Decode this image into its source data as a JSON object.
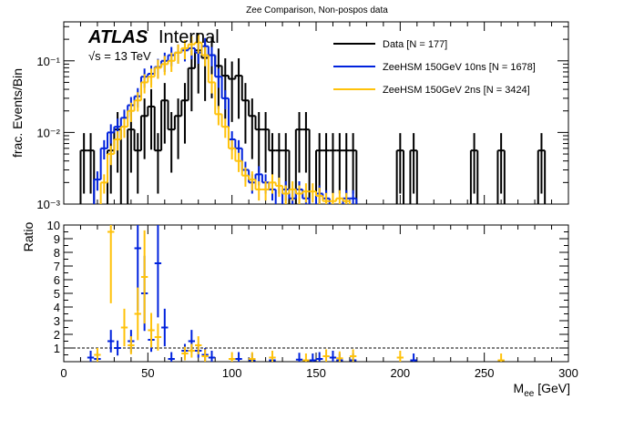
{
  "title": "Zee Comparison, Non-pospos data",
  "atlas": {
    "logo": "ATLAS",
    "status": "Internal",
    "energy": "√s = 13 TeV"
  },
  "colors": {
    "data": "#000000",
    "s10": "#0022dd",
    "s2": "#ffc20a"
  },
  "chart_data": [
    {
      "type": "histogram",
      "panel": "main",
      "xlabel": "M_ee [GeV]",
      "ylabel": "frac. Events/Bin",
      "xlim": [
        0,
        300
      ],
      "ylim": [
        0.001,
        0.35
      ],
      "yscale": "log",
      "bin_width": 4,
      "ytick_labels": [
        "10⁻³",
        "10⁻²",
        "10⁻¹"
      ],
      "legend": {
        "position": "top-right",
        "entries": [
          "Data [N = 177]",
          "ZeeHSM 150GeV 10ns [N = 1678]",
          "ZeeHSM 150GeV 2ns [N = 3424]"
        ]
      },
      "series": [
        {
          "name": "Data [N = 177]",
          "color_key": "data",
          "points": [
            [
              10,
              0.0056
            ],
            [
              14,
              0.0056
            ],
            [
              26,
              0.0056
            ],
            [
              30,
              0.011
            ],
            [
              38,
              0.011
            ],
            [
              42,
              0.0056
            ],
            [
              46,
              0.017
            ],
            [
              50,
              0.023
            ],
            [
              54,
              0.0056
            ],
            [
              58,
              0.028
            ],
            [
              62,
              0.011
            ],
            [
              66,
              0.017
            ],
            [
              70,
              0.028
            ],
            [
              74,
              0.079
            ],
            [
              78,
              0.14
            ],
            [
              82,
              0.11
            ],
            [
              86,
              0.12
            ],
            [
              90,
              0.085
            ],
            [
              94,
              0.062
            ],
            [
              98,
              0.056
            ],
            [
              102,
              0.062
            ],
            [
              106,
              0.028
            ],
            [
              110,
              0.017
            ],
            [
              114,
              0.011
            ],
            [
              118,
              0.011
            ],
            [
              122,
              0.0056
            ],
            [
              126,
              0.0056
            ],
            [
              130,
              0.0056
            ],
            [
              138,
              0.011
            ],
            [
              142,
              0.011
            ],
            [
              150,
              0.0056
            ],
            [
              154,
              0.0056
            ],
            [
              158,
              0.0056
            ],
            [
              162,
              0.0056
            ],
            [
              166,
              0.0056
            ],
            [
              170,
              0.0056
            ],
            [
              198,
              0.0056
            ],
            [
              206,
              0.0056
            ],
            [
              242,
              0.0056
            ],
            [
              258,
              0.0056
            ],
            [
              282,
              0.0056
            ]
          ]
        },
        {
          "name": "ZeeHSM 150GeV 10ns [N = 1678]",
          "color_key": "s10",
          "points": [
            [
              18,
              0.0022
            ],
            [
              22,
              0.006
            ],
            [
              26,
              0.01
            ],
            [
              30,
              0.012
            ],
            [
              34,
              0.016
            ],
            [
              38,
              0.024
            ],
            [
              42,
              0.032
            ],
            [
              46,
              0.06
            ],
            [
              50,
              0.066
            ],
            [
              54,
              0.082
            ],
            [
              58,
              0.1
            ],
            [
              62,
              0.12
            ],
            [
              66,
              0.13
            ],
            [
              70,
              0.14
            ],
            [
              74,
              0.15
            ],
            [
              78,
              0.13
            ],
            [
              82,
              0.16
            ],
            [
              86,
              0.12
            ],
            [
              90,
              0.06
            ],
            [
              94,
              0.03
            ],
            [
              98,
              0.008
            ],
            [
              102,
              0.006
            ],
            [
              106,
              0.003
            ],
            [
              110,
              0.002
            ],
            [
              114,
              0.0026
            ],
            [
              118,
              0.002
            ],
            [
              122,
              0.0016
            ],
            [
              130,
              0.0016
            ],
            [
              134,
              0.0012
            ],
            [
              138,
              0.0016
            ],
            [
              142,
              0.0012
            ],
            [
              150,
              0.0014
            ],
            [
              154,
              0.0012
            ],
            [
              166,
              0.0012
            ],
            [
              170,
              0.0012
            ]
          ]
        },
        {
          "name": "ZeeHSM 150GeV 2ns [N = 3424]",
          "color_key": "s2",
          "points": [
            [
              22,
              0.002
            ],
            [
              26,
              0.005
            ],
            [
              30,
              0.008
            ],
            [
              34,
              0.012
            ],
            [
              38,
              0.02
            ],
            [
              42,
              0.028
            ],
            [
              46,
              0.05
            ],
            [
              50,
              0.06
            ],
            [
              54,
              0.08
            ],
            [
              58,
              0.09
            ],
            [
              62,
              0.1
            ],
            [
              66,
              0.13
            ],
            [
              70,
              0.15
            ],
            [
              74,
              0.17
            ],
            [
              78,
              0.18
            ],
            [
              82,
              0.12
            ],
            [
              86,
              0.05
            ],
            [
              90,
              0.018
            ],
            [
              94,
              0.012
            ],
            [
              98,
              0.006
            ],
            [
              102,
              0.004
            ],
            [
              106,
              0.0025
            ],
            [
              110,
              0.0022
            ],
            [
              114,
              0.0016
            ],
            [
              118,
              0.0016
            ],
            [
              122,
              0.002
            ],
            [
              126,
              0.0018
            ],
            [
              130,
              0.0014
            ],
            [
              134,
              0.0016
            ],
            [
              138,
              0.0014
            ],
            [
              142,
              0.0015
            ],
            [
              146,
              0.0015
            ],
            [
              150,
              0.0013
            ],
            [
              154,
              0.0011
            ],
            [
              158,
              0.0011
            ],
            [
              162,
              0.0012
            ],
            [
              166,
              0.0011
            ]
          ]
        }
      ]
    },
    {
      "type": "scatter",
      "panel": "ratio",
      "xlabel": "M_ee [GeV]",
      "ylabel": "Ratio",
      "xlim": [
        0,
        300
      ],
      "ylim": [
        0,
        10
      ],
      "reference_line": 1,
      "xticks": [
        0,
        50,
        100,
        150,
        200,
        250,
        300
      ],
      "yticks": [
        1,
        2,
        3,
        4,
        5,
        6,
        7,
        8,
        9,
        10
      ],
      "series": [
        {
          "name": "ZeeHSM 150GeV 10ns",
          "color_key": "s10",
          "points": [
            [
              14,
              0.3
            ],
            [
              18,
              0.2
            ],
            [
              26,
              1.5
            ],
            [
              30,
              1.0
            ],
            [
              38,
              1.5
            ],
            [
              42,
              8.3
            ],
            [
              46,
              5.0
            ],
            [
              50,
              1.6
            ],
            [
              54,
              7.2
            ],
            [
              58,
              2.5
            ],
            [
              62,
              0.2
            ],
            [
              70,
              0.8
            ],
            [
              74,
              1.5
            ],
            [
              78,
              0.8
            ],
            [
              82,
              0.5
            ],
            [
              86,
              0.3
            ],
            [
              102,
              0.2
            ],
            [
              110,
              0.1
            ],
            [
              122,
              0.1
            ],
            [
              138,
              0.15
            ],
            [
              146,
              0.1
            ],
            [
              150,
              0.2
            ],
            [
              158,
              0.3
            ],
            [
              162,
              0.1
            ],
            [
              170,
              0.1
            ],
            [
              206,
              0.1
            ]
          ]
        },
        {
          "name": "ZeeHSM 150GeV 2ns",
          "color_key": "s2",
          "points": [
            [
              18,
              0.5
            ],
            [
              26,
              9.5
            ],
            [
              34,
              2.5
            ],
            [
              38,
              1.2
            ],
            [
              42,
              3.5
            ],
            [
              46,
              6.2
            ],
            [
              50,
              2.3
            ],
            [
              54,
              1.8
            ],
            [
              70,
              0.6
            ],
            [
              74,
              0.8
            ],
            [
              78,
              1.2
            ],
            [
              82,
              0.4
            ],
            [
              98,
              0.2
            ],
            [
              110,
              0.2
            ],
            [
              122,
              0.3
            ],
            [
              142,
              0.1
            ],
            [
              154,
              0.4
            ],
            [
              162,
              0.25
            ],
            [
              170,
              0.4
            ],
            [
              198,
              0.3
            ],
            [
              258,
              0.1
            ]
          ]
        }
      ]
    }
  ]
}
